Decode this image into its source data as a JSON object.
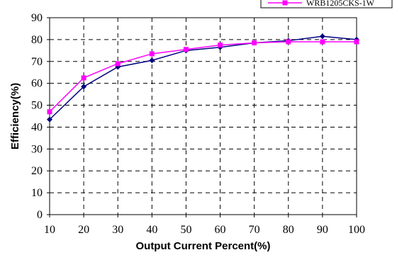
{
  "chart_data": {
    "type": "line",
    "xlabel": "Output Current Percent(%)",
    "ylabel": "Efficiency(%)",
    "x": [
      10,
      20,
      30,
      40,
      50,
      60,
      70,
      80,
      90,
      100
    ],
    "xlim": [
      10,
      100
    ],
    "ylim": [
      0,
      90
    ],
    "yticks": [
      0,
      10,
      20,
      30,
      40,
      50,
      60,
      70,
      80,
      90
    ],
    "grid": true,
    "legend_position": "top-right",
    "series": [
      {
        "name": "",
        "color": "#000080",
        "marker": "diamond",
        "values": [
          43.5,
          58.5,
          67.5,
          70.5,
          75,
          76.5,
          78.5,
          79.5,
          81.5,
          80
        ]
      },
      {
        "name": "WRB1205CKS-1W",
        "color": "#ff00ff",
        "marker": "square",
        "values": [
          47,
          62.5,
          69,
          73.5,
          75.5,
          77.5,
          78.5,
          79,
          79,
          79
        ]
      }
    ]
  }
}
